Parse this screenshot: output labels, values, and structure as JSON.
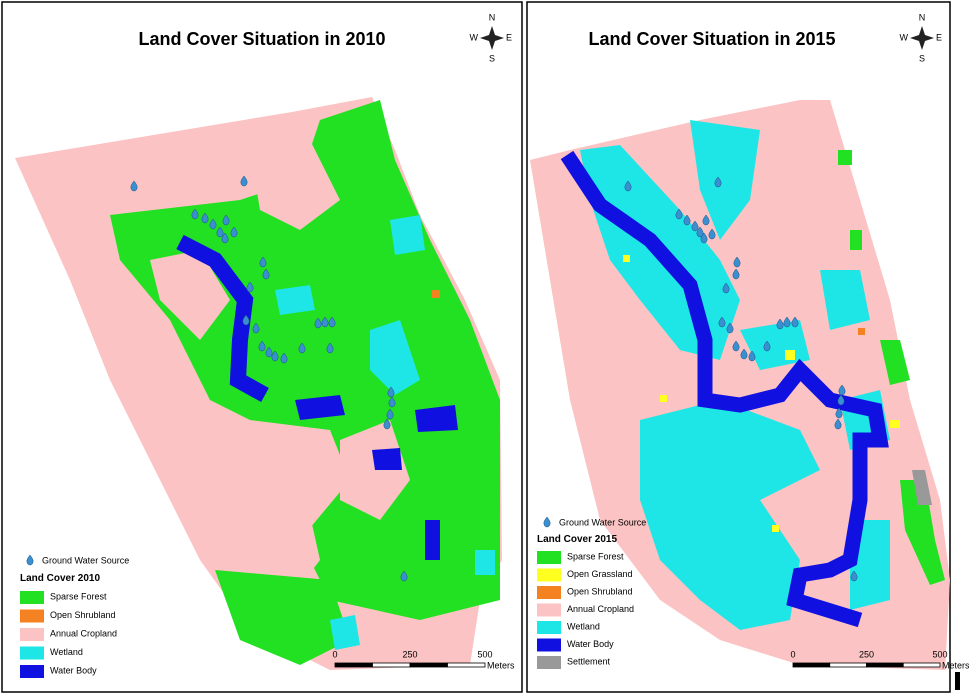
{
  "maps": [
    {
      "title": "Land Cover Situation in 2010",
      "compass": {
        "n": "N",
        "s": "S",
        "e": "E",
        "w": "W"
      },
      "legend": {
        "point": "Ground Water Source",
        "title": "Land Cover 2010",
        "items": [
          {
            "label": "Sparse Forest",
            "color": "#22e022"
          },
          {
            "label": "Open Shrubland",
            "color": "#f58220"
          },
          {
            "label": "Annual Cropland",
            "color": "#fbc3c3"
          },
          {
            "label": "Wetland",
            "color": "#1ee6e6"
          },
          {
            "label": "Water Body",
            "color": "#1010e0"
          }
        ]
      },
      "scale": {
        "labels": [
          "0",
          "250",
          "500"
        ],
        "unit": "Meters"
      }
    },
    {
      "title": "Land Cover Situation in 2015",
      "compass": {
        "n": "N",
        "s": "S",
        "e": "E",
        "w": "W"
      },
      "legend": {
        "point": "Ground Water Source",
        "title": "Land Cover 2015",
        "items": [
          {
            "label": "Sparse Forest",
            "color": "#22e022"
          },
          {
            "label": "Open Grassland",
            "color": "#ffff20"
          },
          {
            "label": "Open Shrubland",
            "color": "#f58220"
          },
          {
            "label": "Annual Cropland",
            "color": "#fbc3c3"
          },
          {
            "label": "Wetland",
            "color": "#1ee6e6"
          },
          {
            "label": "Water Body",
            "color": "#1010e0"
          },
          {
            "label": "Settlement",
            "color": "#999999"
          }
        ]
      },
      "scale": {
        "labels": [
          "0",
          "250",
          "500"
        ],
        "unit": "Meters"
      }
    }
  ]
}
